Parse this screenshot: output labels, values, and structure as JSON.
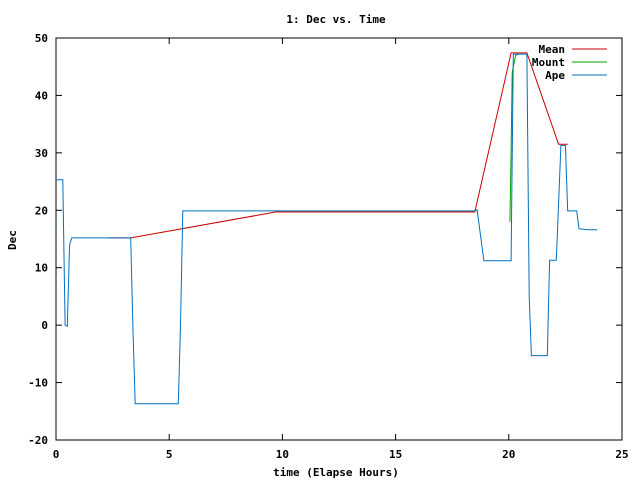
{
  "chart_data": {
    "type": "line",
    "title": "1: Dec vs. Time",
    "xlabel": "time (Elapse Hours)",
    "ylabel": "Dec",
    "xlim": [
      0,
      25
    ],
    "ylim": [
      -20,
      50
    ],
    "xticks": [
      0,
      5,
      10,
      15,
      20,
      25
    ],
    "yticks": [
      -20,
      -10,
      0,
      10,
      20,
      30,
      40,
      50
    ],
    "grid": false,
    "legend_position": "top-right",
    "series": [
      {
        "name": "Mean",
        "color": "#cc0000",
        "x": [
          2.3,
          3.3,
          9.7,
          18.5,
          20.1,
          20.8,
          22.2,
          22.6
        ],
        "y": [
          15.2,
          15.2,
          19.7,
          19.7,
          47.4,
          47.4,
          31.5,
          31.5
        ]
      },
      {
        "name": "Mount",
        "color": "#00a000",
        "x": [
          20.05,
          20.1,
          20.15,
          20.3,
          20.45
        ],
        "y": [
          18.0,
          30.0,
          44.0,
          47.0,
          47.2
        ]
      },
      {
        "name": "Ape",
        "color": "#0070c0",
        "x": [
          0.0,
          0.3,
          0.4,
          0.5,
          0.6,
          0.7,
          3.3,
          3.4,
          3.5,
          5.4,
          5.5,
          5.6,
          18.5,
          18.6,
          18.9,
          20.1,
          20.2,
          20.8,
          20.9,
          21.0,
          21.7,
          21.8,
          22.1,
          22.3,
          22.5,
          22.6,
          23.0,
          23.1,
          23.5,
          23.9
        ],
        "y": [
          25.3,
          25.3,
          0.0,
          -0.2,
          14.0,
          15.2,
          15.2,
          -1.0,
          -13.7,
          -13.7,
          0.0,
          19.9,
          19.9,
          20.1,
          11.2,
          11.2,
          47.2,
          47.2,
          5.0,
          -5.3,
          -5.3,
          11.3,
          11.3,
          31.3,
          31.3,
          19.9,
          19.9,
          16.8,
          16.6,
          16.6
        ]
      }
    ]
  }
}
